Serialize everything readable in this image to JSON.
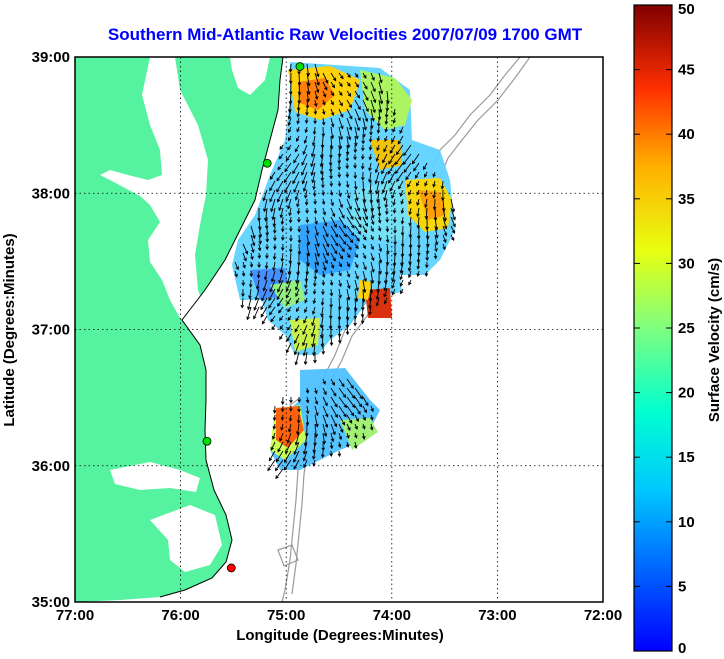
{
  "chart_data": {
    "type": "heatmap",
    "title": "Southern Mid-Atlantic Raw Velocities 2007/07/09 1700 GMT",
    "xlabel": "Longitude (Degrees:Minutes)",
    "ylabel": "Latitude (Degrees:Minutes)",
    "x_ticks": [
      "77:00",
      "76:00",
      "75:00",
      "74:00",
      "73:00",
      "72:00"
    ],
    "y_ticks": [
      "35:00",
      "36:00",
      "37:00",
      "38:00",
      "39:00"
    ],
    "xlim": [
      -77,
      -72
    ],
    "ylim": [
      35,
      39
    ],
    "grid": true,
    "colorbar": {
      "label": "Surface Velocity (cm/s)",
      "ticks": [
        "0",
        "5",
        "10",
        "15",
        "20",
        "25",
        "30",
        "35",
        "40",
        "45",
        "50"
      ],
      "range": [
        0,
        50
      ],
      "colormap": "jet"
    },
    "stations": [
      {
        "lon": -74.87,
        "lat": 38.93,
        "color": "#00dd00"
      },
      {
        "lon": -75.18,
        "lat": 38.22,
        "color": "#00dd00"
      },
      {
        "lon": -75.75,
        "lat": 36.18,
        "color": "#00dd00"
      },
      {
        "lon": -75.52,
        "lat": 35.25,
        "color": "#ff0000"
      }
    ],
    "colors": {
      "land": "#55f2a0",
      "water": "#ffffff",
      "title": "#0000ff",
      "bathymetry": "#9a9a9a"
    }
  }
}
